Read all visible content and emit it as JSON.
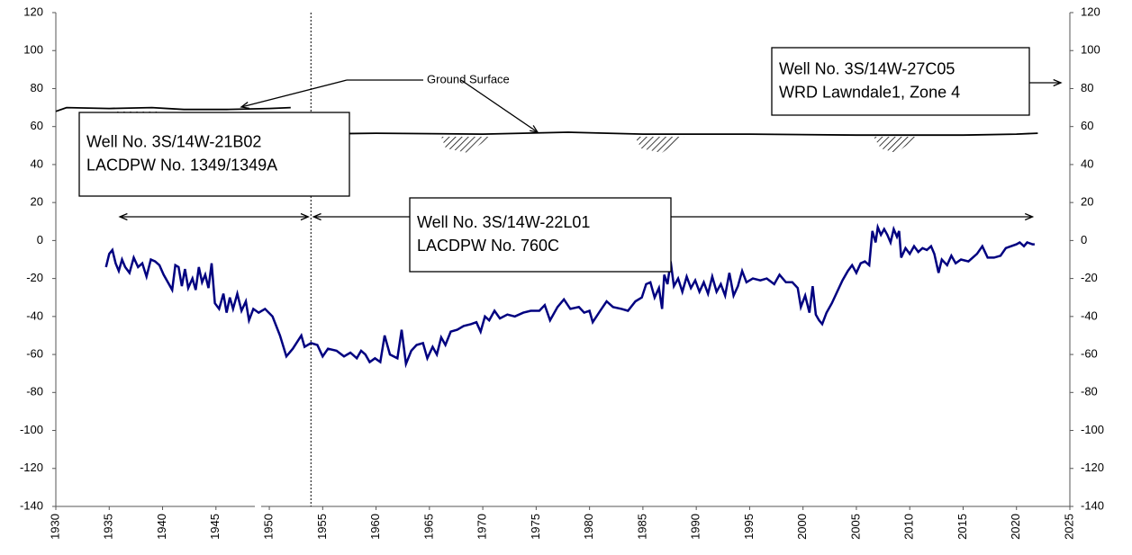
{
  "chart_data": {
    "type": "line",
    "xlim": [
      1930,
      2025
    ],
    "xticks": [
      1930,
      1935,
      1940,
      1945,
      1950,
      1955,
      1960,
      1965,
      1970,
      1975,
      1980,
      1985,
      1990,
      1995,
      2000,
      2005,
      2010,
      2015,
      2020,
      2025
    ],
    "ylim": [
      -140,
      120
    ],
    "yticks": [
      -140,
      -120,
      -100,
      -80,
      -60,
      -40,
      -20,
      0,
      20,
      40,
      60,
      80,
      100,
      120
    ],
    "y2lim": [
      -140,
      120
    ],
    "y2ticks": [
      -140,
      -120,
      -100,
      -80,
      -60,
      -40,
      -20,
      0,
      20,
      40,
      60,
      80,
      100,
      120
    ],
    "series": [
      {
        "color": "#000080",
        "x": [
          1934.7,
          1935.0,
          1935.3,
          1935.6,
          1935.9,
          1936.2,
          1936.5,
          1936.9,
          1937.3,
          1937.7,
          1938.1,
          1938.5,
          1938.9,
          1939.3,
          1939.7,
          1940.1,
          1940.6,
          1940.9,
          1941.2,
          1941.5,
          1941.8,
          1942.1,
          1942.4,
          1942.8,
          1943.1,
          1943.4,
          1943.7,
          1944.0,
          1944.3,
          1944.6,
          1944.9,
          1945.3,
          1945.7,
          1946.0,
          1946.3,
          1946.6,
          1947.0,
          1947.4,
          1947.8,
          1948.1,
          1948.5,
          1949.0,
          1949.6,
          1950.3,
          1951.0,
          1951.6,
          1952.2,
          1953.0,
          1953.3,
          1953.9,
          1954.5,
          1955.0,
          1955.5,
          1956.3,
          1957.0,
          1957.6,
          1958.2,
          1958.6,
          1959.0,
          1959.4,
          1959.9,
          1960.4,
          1960.8,
          1961.3,
          1962.0,
          1962.4,
          1962.8,
          1963.3,
          1963.8,
          1964.4,
          1964.8,
          1965.3,
          1965.7,
          1966.1,
          1966.5,
          1967.0,
          1967.6,
          1968.2,
          1968.9,
          1969.4,
          1969.8,
          1970.2,
          1970.6,
          1971.1,
          1971.6,
          1972.3,
          1973.0,
          1973.8,
          1974.5,
          1975.3,
          1975.8,
          1976.3,
          1977.0,
          1977.6,
          1978.2,
          1979.0,
          1979.5,
          1980.0,
          1980.3,
          1981.0,
          1981.6,
          1982.2,
          1983.0,
          1983.6,
          1984.3,
          1984.9,
          1985.3,
          1985.7,
          1986.1,
          1986.5,
          1986.8,
          1987.0,
          1987.3,
          1987.6,
          1987.9,
          1988.3,
          1988.7,
          1989.1,
          1989.5,
          1989.9,
          1990.3,
          1990.7,
          1991.1,
          1991.5,
          1991.9,
          1992.3,
          1992.7,
          1993.1,
          1993.5,
          1993.9,
          1994.3,
          1994.7,
          1995.3,
          1996.0,
          1996.6,
          1997.3,
          1997.8,
          1998.4,
          1999.0,
          1999.5,
          1999.8,
          2000.2,
          2000.6,
          2000.9,
          2001.2,
          2001.5,
          2001.8,
          2002.2,
          2002.7,
          2003.2,
          2003.7,
          2004.2,
          2004.6,
          2005.0,
          2005.4,
          2005.8,
          2006.2,
          2006.5,
          2006.8,
          2007.0,
          2007.3,
          2007.6,
          2007.9,
          2008.2,
          2008.5,
          2008.8,
          2009.0,
          2009.2,
          2009.6,
          2010.0,
          2010.4,
          2010.8,
          2011.2,
          2011.6,
          2012.0,
          2012.3,
          2012.7,
          2013.0,
          2013.5,
          2013.9,
          2014.3,
          2014.8,
          2015.5,
          2016.3,
          2016.8,
          2017.3,
          2017.9,
          2018.5,
          2019.0,
          2019.5,
          2020.0,
          2020.3,
          2020.7,
          2021.0,
          2021.5,
          2021.7
        ],
        "values": [
          -14,
          -7,
          -5,
          -12,
          -16,
          -10,
          -14,
          -17,
          -9,
          -14,
          -12,
          -19,
          -10,
          -11,
          -13,
          -18,
          -23,
          -26,
          -13,
          -14,
          -24,
          -15,
          -25,
          -20,
          -26,
          -14,
          -22,
          -18,
          -25,
          -12,
          -33,
          -36,
          -28,
          -38,
          -30,
          -36,
          -28,
          -37,
          -32,
          -42,
          -36,
          -38,
          -36,
          -40,
          -50,
          -61,
          -57,
          -50,
          -56,
          -54,
          -55,
          -61,
          -57,
          -58,
          -61,
          -59,
          -62,
          -58,
          -60,
          -64,
          -62,
          -64,
          -50,
          -60,
          -62,
          -47,
          -65,
          -58,
          -55,
          -54,
          -62,
          -56,
          -60,
          -51,
          -55,
          -48,
          -47,
          -45,
          -44,
          -43,
          -48,
          -40,
          -42,
          -37,
          -41,
          -39,
          -40,
          -38,
          -37,
          -37,
          -34,
          -42,
          -35,
          -31,
          -36,
          -35,
          -38,
          -37,
          -43,
          -37,
          -32,
          -35,
          -36,
          -37,
          -32,
          -30,
          -23,
          -22,
          -30,
          -25,
          -36,
          -18,
          -23,
          -11,
          -24,
          -20,
          -27,
          -19,
          -25,
          -21,
          -27,
          -22,
          -28,
          -19,
          -27,
          -23,
          -29,
          -17,
          -29,
          -24,
          -16,
          -22,
          -20,
          -21,
          -20,
          -23,
          -18,
          -22,
          -22,
          -25,
          -35,
          -29,
          -38,
          -24,
          -39,
          -42,
          -44,
          -38,
          -33,
          -27,
          -21,
          -16,
          -13,
          -17,
          -12,
          -11,
          -13,
          5,
          -1,
          7,
          3,
          6,
          3,
          -1,
          6,
          2,
          5,
          -9,
          -4,
          -7,
          -3,
          -6,
          -4,
          -5,
          -3,
          -7,
          -17,
          -10,
          -13,
          -8,
          -12,
          -10,
          -11,
          -7,
          -3,
          -9,
          -9,
          -8,
          -4,
          -3,
          -2,
          -1,
          -3,
          -1,
          -2,
          -2
        ]
      },
      {
        "color": "#000000",
        "x": [
          1930,
          1931,
          1935,
          1939,
          1942,
          1946,
          1950,
          1952,
          1953,
          1953.3,
          1960,
          1970,
          1978,
          1985,
          1995,
          2005,
          2015,
          2020,
          2022
        ],
        "values": [
          68,
          70,
          69.5,
          70,
          69,
          69,
          69.5,
          70,
          null,
          56,
          56.5,
          56,
          57,
          56,
          56,
          55.5,
          55.5,
          56,
          56.5
        ]
      }
    ],
    "ground_surface_label": "Ground Surface",
    "wells": [
      {
        "lines": [
          "Well No. 3S/14W-21B02",
          "LACDPW No. 1349/1349A"
        ],
        "range": [
          1936,
          1953.9
        ]
      },
      {
        "lines": [
          "Well No. 3S/14W-22L01",
          "LACDPW No. 760C"
        ],
        "range": [
          1953.9,
          2021.5
        ]
      },
      {
        "lines": [
          "Well No. 3S/14W-27C05",
          "WRD Lawndale1, Zone 4"
        ]
      }
    ]
  }
}
